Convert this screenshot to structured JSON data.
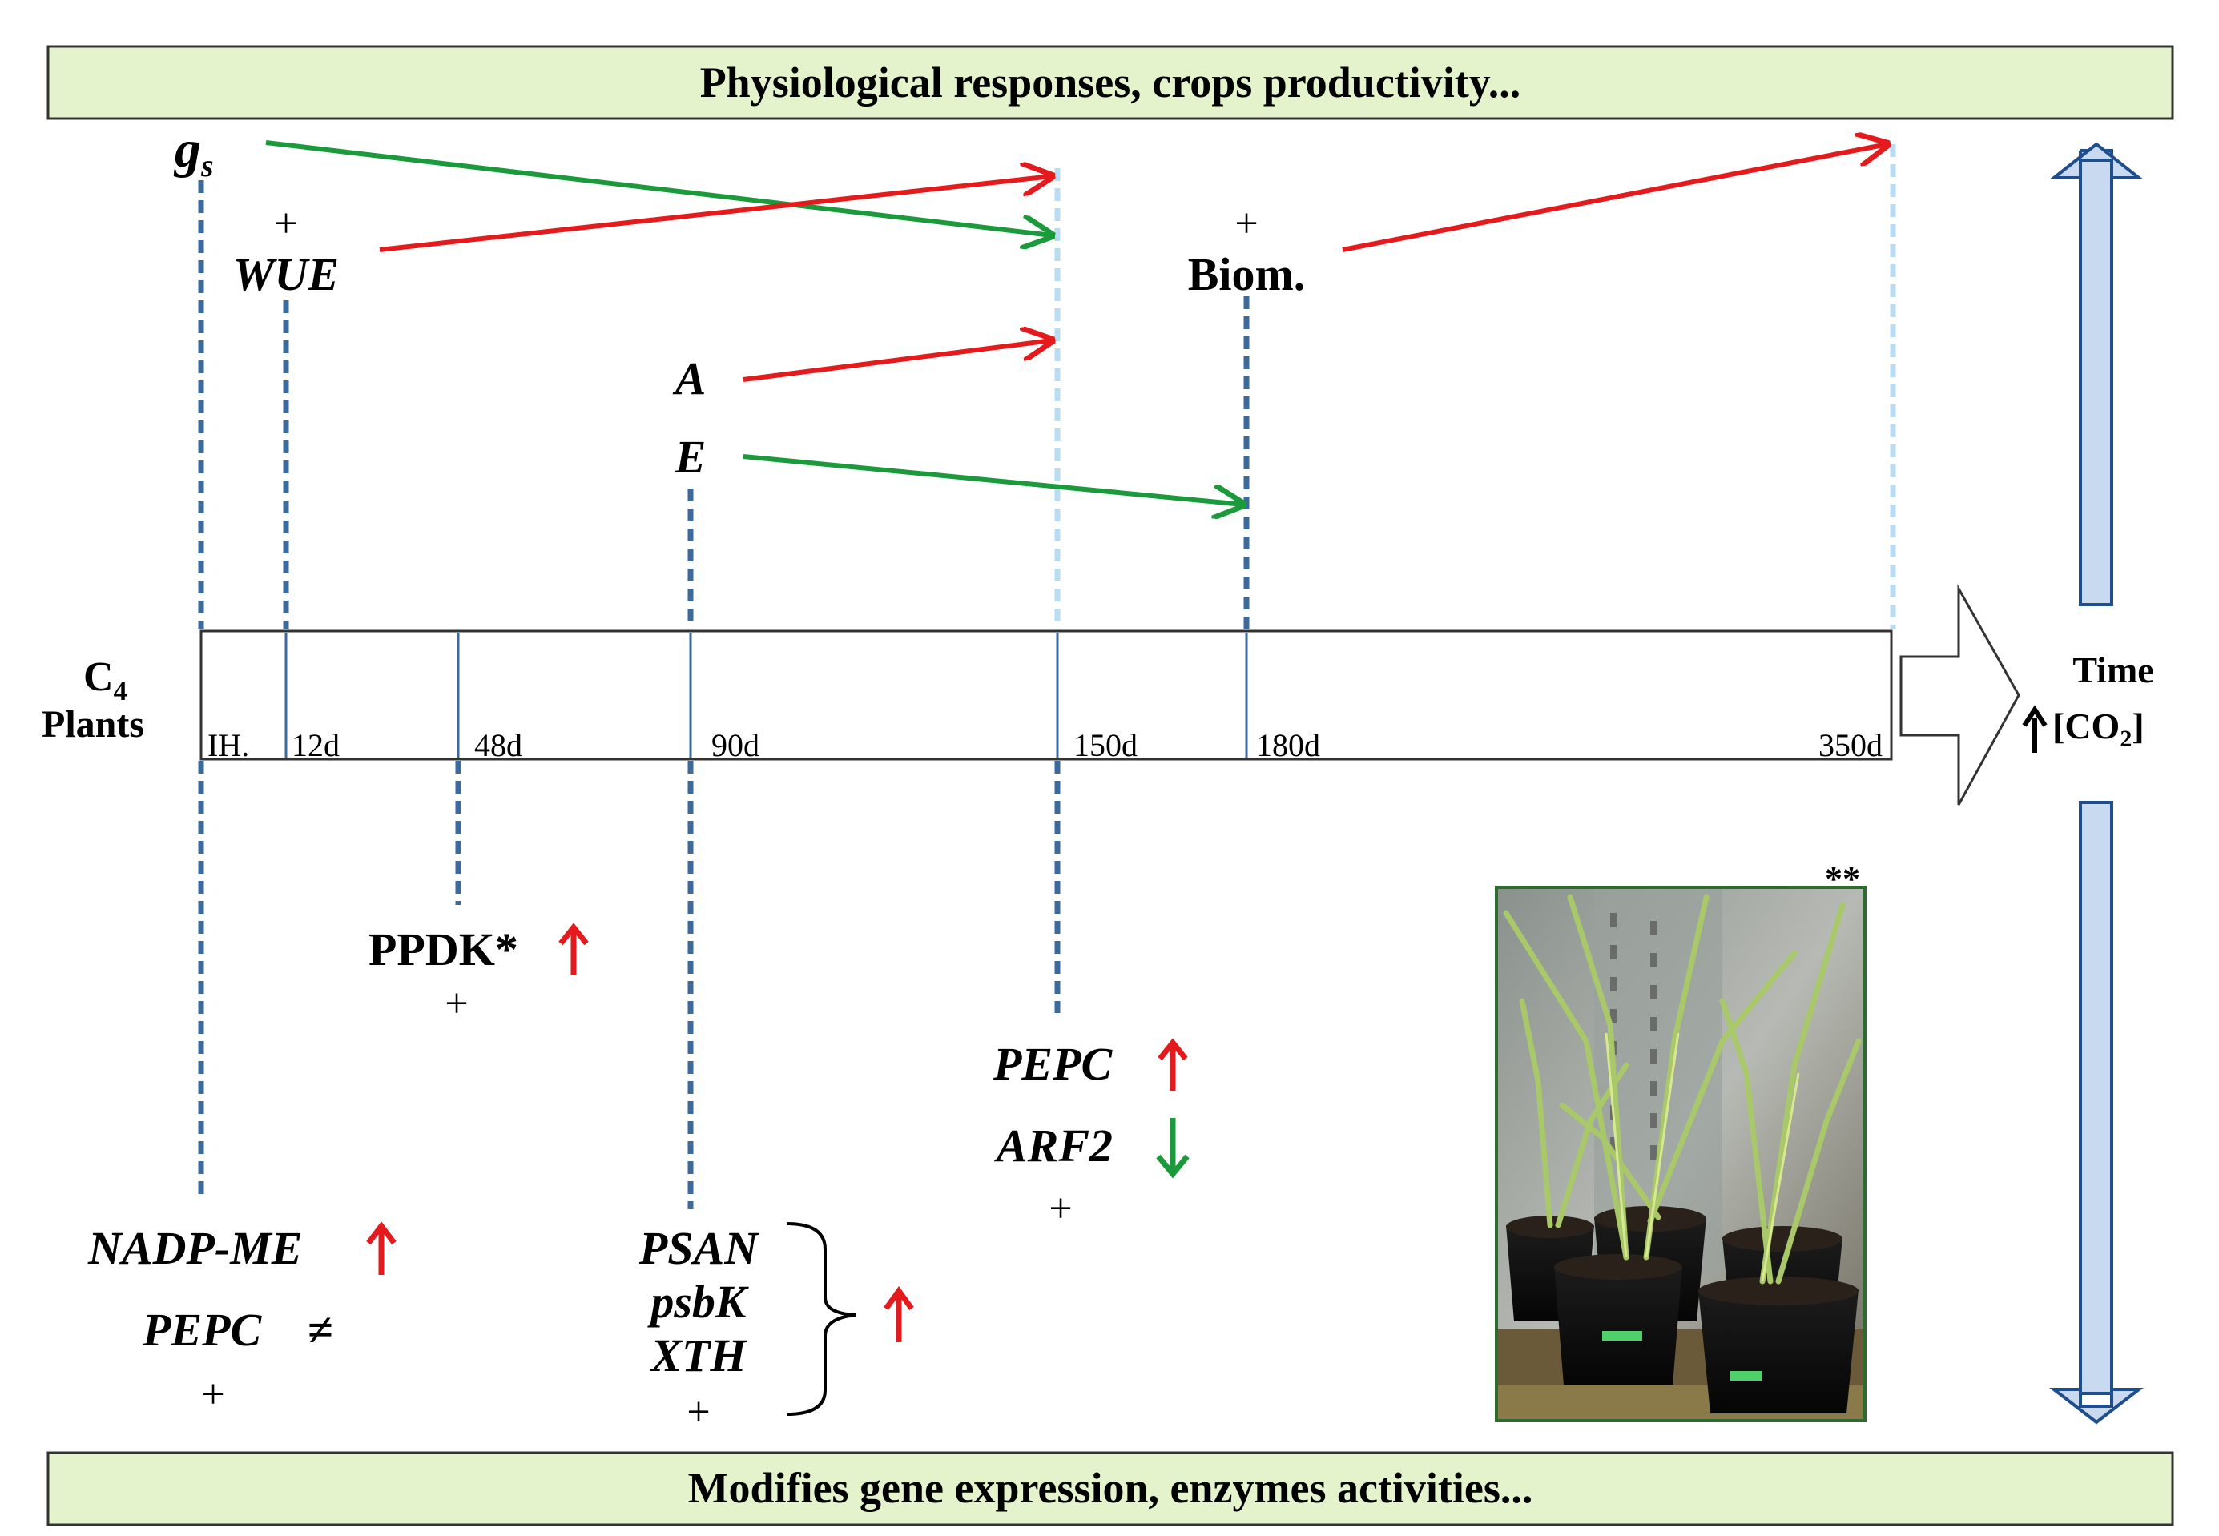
{
  "banners": {
    "top": "Physiological responses, crops productivity...",
    "bottom": "Modifies gene expression, enzymes activities..."
  },
  "left_label": {
    "line1_main": "C",
    "line1_sub": "4",
    "line2": "Plants"
  },
  "right_label": {
    "time": "Time",
    "co2": "[CO",
    "co2_sub": "2",
    "co2_end": "]"
  },
  "timeline_ticks": [
    "IH.",
    "12d",
    "48d",
    "90d",
    "150d",
    "180d",
    "350d"
  ],
  "physiological": {
    "gs_main": "g",
    "gs_sub": "s",
    "wue": "WUE",
    "a": "A",
    "e": "E",
    "biom": "Biom.",
    "plus": "+"
  },
  "genes": {
    "ppdk": "PPDK*",
    "pepc_150": "PEPC",
    "arf2": "ARF2",
    "nadp_me": "NADP-ME",
    "pepc_ih": "PEPC",
    "pepc_ih_symbol": "≠",
    "psan": "PSAN",
    "psbk": "psbK",
    "xth": "XTH",
    "plus": "+"
  },
  "photo": {
    "mark": "**"
  },
  "colors": {
    "increase": "#e41a1c",
    "decrease": "#1a9a3a",
    "banner_fill": "#e4f3cc",
    "dashed_line": "#3d6a9e",
    "light_dashed": "#b9dcf2",
    "side_arrow_fill": "#c9daf0",
    "side_arrow_stroke": "#1f4e8c"
  }
}
